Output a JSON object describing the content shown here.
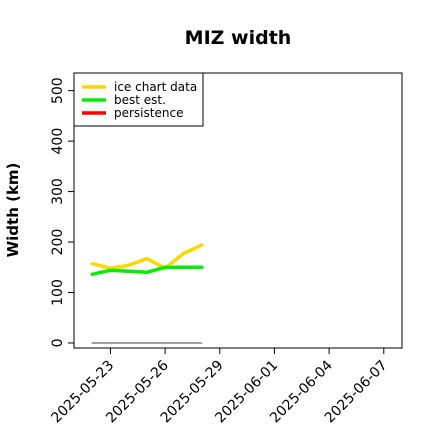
{
  "chart_data": {
    "type": "line",
    "title": "MIZ width",
    "xlabel": "",
    "ylabel": "Width (km)",
    "x_tick_labels": [
      "2025-05-23",
      "2025-05-26",
      "2025-05-29",
      "2025-06-01",
      "2025-06-04",
      "2025-06-07"
    ],
    "xlim": [
      "2025-05-21",
      "2025-06-08"
    ],
    "ylim": [
      -10,
      535
    ],
    "y_ticks": [
      0,
      100,
      200,
      300,
      400,
      500
    ],
    "legend": {
      "placement": "top-left"
    },
    "series": [
      {
        "name": "ice chart data",
        "color": "#FFD700",
        "x": [
          "2025-05-22",
          "2025-05-23",
          "2025-05-24",
          "2025-05-25",
          "2025-05-26",
          "2025-05-27",
          "2025-05-28"
        ],
        "values": [
          157,
          148,
          154,
          167,
          148,
          177,
          194
        ]
      },
      {
        "name": "best est.",
        "color": "#00EE00",
        "x": [
          "2025-05-22",
          "2025-05-23",
          "2025-05-24",
          "2025-05-25",
          "2025-05-26",
          "2025-05-27",
          "2025-05-28"
        ],
        "values": [
          136,
          144,
          142,
          140,
          150,
          150,
          150
        ]
      },
      {
        "name": "persistence",
        "color": "#FF0000",
        "x": [],
        "values": []
      },
      {
        "name": "",
        "color": "#808080",
        "x": [
          "2025-05-22",
          "2025-05-28"
        ],
        "values": [
          0,
          0
        ]
      }
    ]
  }
}
